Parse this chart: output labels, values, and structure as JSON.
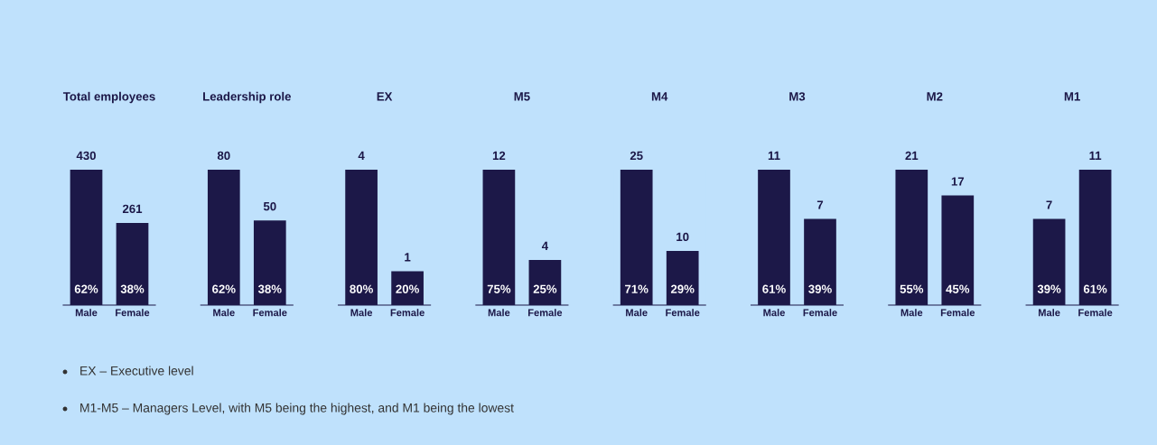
{
  "chart_data": [
    {
      "type": "bar",
      "title": "Total employees",
      "categories": [
        "Male",
        "Female"
      ],
      "values": [
        430,
        261
      ],
      "color": "#1c1848",
      "data_labels": true,
      "tick_labels": "x",
      "annotations": [
        "62%",
        "38%",
        "EX – Executive level",
        "M1-M5 – Managers Level, with M5 being the highest, and M1 being the lowest"
      ]
    },
    {
      "type": "bar",
      "title": "Leadership role",
      "categories": [
        "Male",
        "Female"
      ],
      "values": [
        80,
        50
      ],
      "color": "#1c1848",
      "data_labels": true,
      "tick_labels": "x",
      "annotations": [
        "62%",
        "38%"
      ]
    },
    {
      "type": "bar",
      "title": "EX",
      "categories": [
        "Male",
        "Female"
      ],
      "values": [
        4,
        1
      ],
      "color": "#1c1848",
      "data_labels": true,
      "tick_labels": "x",
      "annotations": [
        "80%",
        "20%"
      ]
    },
    {
      "type": "bar",
      "title": "M5",
      "categories": [
        "Male",
        "Female"
      ],
      "values": [
        12,
        4
      ],
      "color": "#1c1848",
      "data_labels": true,
      "tick_labels": "x",
      "annotations": [
        "75%",
        "25%"
      ]
    },
    {
      "type": "bar",
      "title": "M4",
      "categories": [
        "Male",
        "Female"
      ],
      "values": [
        25,
        10
      ],
      "color": "#1c1848",
      "data_labels": true,
      "tick_labels": "x",
      "annotations": [
        "71%",
        "29%"
      ]
    },
    {
      "type": "bar",
      "title": "M3",
      "categories": [
        "Male",
        "Female"
      ],
      "values": [
        11,
        7
      ],
      "color": "#1c1848",
      "data_labels": true,
      "tick_labels": "x",
      "annotations": [
        "61%",
        "39%"
      ]
    },
    {
      "type": "bar",
      "title": "M2",
      "categories": [
        "Male",
        "Female"
      ],
      "values": [
        21,
        17
      ],
      "color": "#1c1848",
      "data_labels": true,
      "tick_labels": "x",
      "annotations": [
        "55%",
        "45%"
      ]
    },
    {
      "type": "bar",
      "title": "M1",
      "categories": [
        "Male",
        "Female"
      ],
      "values": [
        7,
        11
      ],
      "color": "#1c1848",
      "data_labels": true,
      "tick_labels": "x",
      "annotations": [
        "39%",
        "61%"
      ]
    }
  ]
}
